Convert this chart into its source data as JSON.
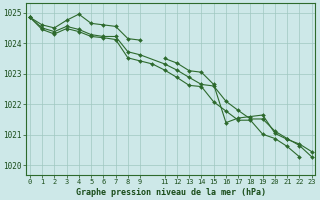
{
  "title": "Graphe pression niveau de la mer (hPa)",
  "background_color": "#cde8e8",
  "plot_background": "#cde8e8",
  "line_color": "#2d6a2d",
  "grid_color": "#a0c8c0",
  "ylim": [
    1019.7,
    1025.3
  ],
  "yticks": [
    1020,
    1021,
    1022,
    1023,
    1024,
    1025
  ],
  "xtick_positions": [
    0,
    1,
    2,
    3,
    4,
    5,
    6,
    7,
    8,
    9,
    11,
    12,
    13,
    14,
    15,
    16,
    17,
    18,
    19,
    20,
    21,
    22,
    23
  ],
  "xtick_labels": [
    "0",
    "1",
    "2",
    "3",
    "4",
    "5",
    "6",
    "7",
    "8",
    "9",
    "11",
    "12",
    "13",
    "14",
    "15",
    "16",
    "17",
    "18",
    "19",
    "20",
    "21",
    "22",
    "23"
  ],
  "xlim": [
    -0.3,
    23.3
  ],
  "series": [
    {
      "x": [
        0,
        1,
        2,
        3,
        4,
        5,
        6,
        7,
        8,
        9
      ],
      "y": [
        1024.85,
        1024.6,
        1024.5,
        1024.75,
        1024.95,
        1024.65,
        1024.6,
        1024.55,
        1024.15,
        1024.1
      ]
    },
    {
      "x": [
        11,
        12,
        13,
        14,
        15,
        16,
        17,
        18,
        19,
        20,
        21,
        22,
        23
      ],
      "y": [
        1023.5,
        1023.35,
        1023.1,
        1023.05,
        1022.65,
        1021.4,
        1021.55,
        1021.6,
        1021.65,
        1021.05,
        1020.85,
        1020.7,
        1020.45
      ]
    },
    {
      "x": [
        0,
        1,
        2,
        3,
        4,
        5,
        6,
        7,
        8,
        9,
        11,
        12,
        13,
        14,
        15,
        16,
        17,
        18,
        19,
        20,
        21,
        22,
        23
      ],
      "y": [
        1024.85,
        1024.5,
        1024.38,
        1024.55,
        1024.45,
        1024.28,
        1024.22,
        1024.22,
        1023.72,
        1023.62,
        1023.32,
        1023.12,
        1022.88,
        1022.65,
        1022.6,
        1022.1,
        1021.8,
        1021.52,
        1021.52,
        1021.12,
        1020.88,
        1020.65,
        1020.28
      ]
    },
    {
      "x": [
        0,
        1,
        2,
        3,
        4,
        5,
        6,
        7,
        8,
        9,
        10,
        11,
        12,
        13,
        14,
        15,
        16,
        17,
        18,
        19,
        20,
        21,
        22
      ],
      "y": [
        1024.85,
        1024.45,
        1024.3,
        1024.48,
        1024.38,
        1024.22,
        1024.18,
        1024.12,
        1023.52,
        1023.42,
        1023.32,
        1023.12,
        1022.88,
        1022.62,
        1022.58,
        1022.08,
        1021.78,
        1021.48,
        1021.48,
        1021.02,
        1020.88,
        1020.62,
        1020.28
      ]
    }
  ]
}
